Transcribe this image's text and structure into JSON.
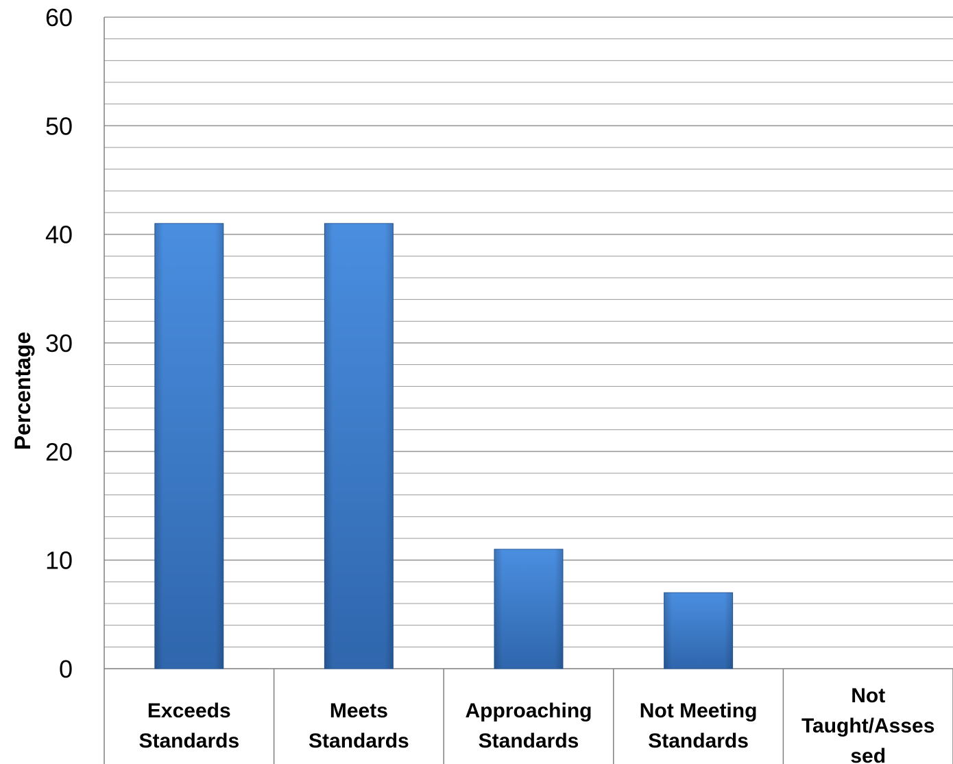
{
  "chart_data": {
    "type": "bar",
    "title": "",
    "xlabel": "",
    "ylabel": "Percentage",
    "ylim": [
      0,
      60
    ],
    "major_ticks": [
      0,
      10,
      20,
      30,
      40,
      50,
      60
    ],
    "minor_step": 2,
    "grid": true,
    "categories": [
      [
        "Exceeds",
        "Standards"
      ],
      [
        "Meets",
        "Standards"
      ],
      [
        "Approaching",
        "Standards"
      ],
      [
        "Not Meeting",
        "Standards"
      ],
      [
        "Not",
        "Taught/Asses",
        "sed"
      ]
    ],
    "values": [
      41,
      41,
      11,
      7,
      0
    ],
    "colors": {
      "bar_top": "#4a8ee0",
      "bar_bottom": "#2f66ac",
      "grid": "#9a9a9a",
      "axis": "#7f7f7f"
    }
  }
}
